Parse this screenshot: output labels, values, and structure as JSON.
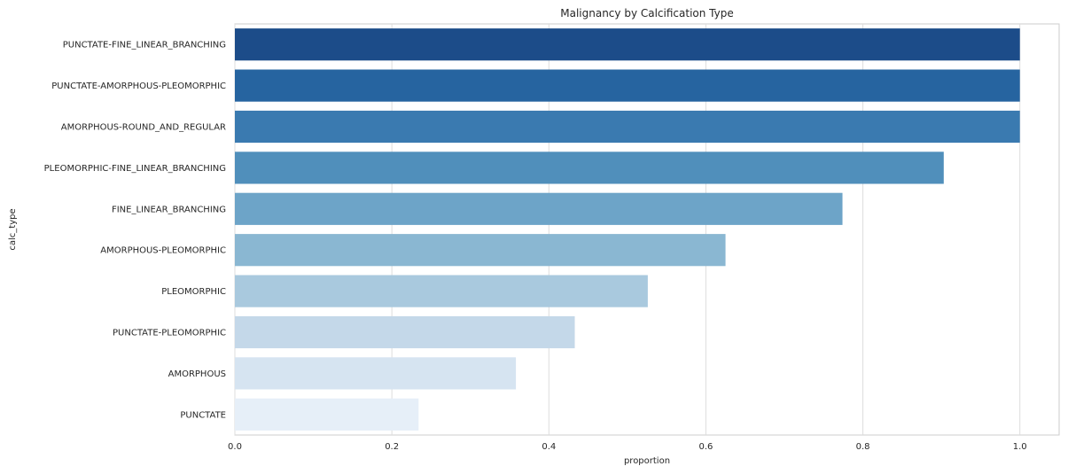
{
  "chart_data": {
    "type": "bar",
    "orientation": "horizontal",
    "title": "Malignancy by Calcification Type",
    "xlabel": "proportion",
    "ylabel": "calc_type",
    "xlim": [
      0,
      1.05
    ],
    "xticks": [
      0.0,
      0.2,
      0.4,
      0.6,
      0.8,
      1.0
    ],
    "xtick_labels": [
      "0.0",
      "0.2",
      "0.4",
      "0.6",
      "0.8",
      "1.0"
    ],
    "grid": true,
    "categories": [
      "PUNCTATE-FINE_LINEAR_BRANCHING",
      "PUNCTATE-AMORPHOUS-PLEOMORPHIC",
      "AMORPHOUS-ROUND_AND_REGULAR",
      "PLEOMORPHIC-FINE_LINEAR_BRANCHING",
      "FINE_LINEAR_BRANCHING",
      "AMORPHOUS-PLEOMORPHIC",
      "PLEOMORPHIC",
      "PUNCTATE-PLEOMORPHIC",
      "AMORPHOUS",
      "PUNCTATE"
    ],
    "values": [
      1.0,
      1.0,
      1.0,
      0.903,
      0.774,
      0.625,
      0.526,
      0.433,
      0.358,
      0.234
    ],
    "colors": [
      "#1c4c89",
      "#2664a0",
      "#3a7ab0",
      "#508fbb",
      "#6da4c8",
      "#8ab7d2",
      "#a9c9de",
      "#c4d8e9",
      "#d6e4f1",
      "#e6eff8"
    ]
  }
}
